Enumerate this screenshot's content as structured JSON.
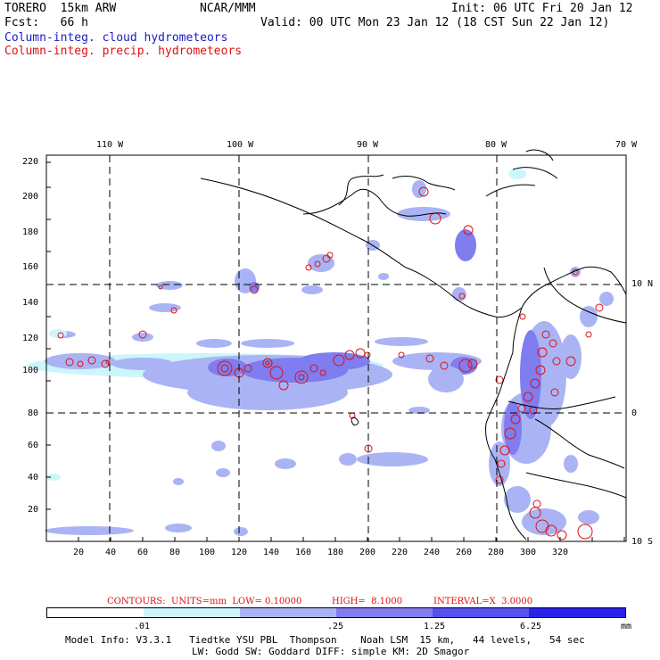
{
  "header": {
    "model": "TORERO  15km ARW",
    "org": "NCAR/MMM",
    "init": "Init: 06 UTC Fri 20 Jan 12",
    "fcst": "Fcst:   66 h",
    "valid": "Valid: 00 UTC Mon 23 Jan 12 (18 CST Sun 22 Jan 12)",
    "field1": "Column-integ. cloud hydrometeors",
    "field2": "Column-integ. precip. hydrometeors"
  },
  "axes": {
    "top_lon_labels": [
      "110 W",
      "100 W",
      "90 W",
      "80 W",
      "70 W"
    ],
    "right_lat_labels": [
      "10 N",
      "0",
      "10 S"
    ],
    "y_grid_labels": [
      "20",
      "40",
      "60",
      "80",
      "100",
      "120",
      "140",
      "160",
      "180",
      "200",
      "220"
    ],
    "x_grid_labels": [
      "20",
      "40",
      "60",
      "80",
      "100",
      "120",
      "140",
      "160",
      "180",
      "200",
      "220",
      "240",
      "260",
      "280",
      "300",
      "320"
    ]
  },
  "contour_info": {
    "units": "CONTOURS:  UNITS=mm  LOW= 0.10000",
    "high": "HIGH=  8.1000",
    "interval": "INTERVAL=X  3.0000"
  },
  "legend": {
    "labels": [
      ".01",
      ".25",
      "1.25",
      "6.25"
    ],
    "unit": "mm",
    "colors": [
      "#ffffff",
      "#ccf6fb",
      "#aab4f4",
      "#7f7df0",
      "#5552ef",
      "#2a22ea"
    ]
  },
  "footer": {
    "line1": "Model Info: V3.3.1   Tiedtke YSU PBL  Thompson    Noah LSM  15 km,   44 levels,   54 sec",
    "line2": "LW: Godd SW: Goddard DIFF: simple KM: 2D Smagor"
  }
}
